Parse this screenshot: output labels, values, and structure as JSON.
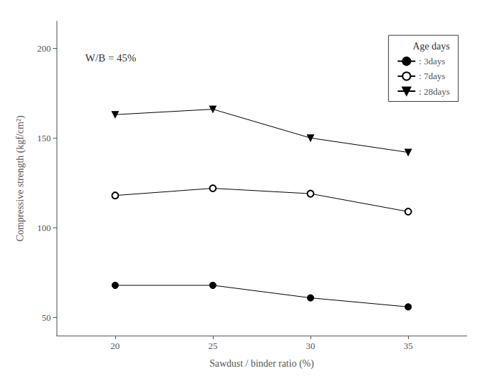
{
  "chart_data": {
    "type": "line",
    "xlabel": "Sawdust / binder ratio (%)",
    "ylabel": "Compressive strength (kgf/cm²)",
    "x": [
      20,
      25,
      30,
      35
    ],
    "series": [
      {
        "name": ": 3days",
        "color": "black",
        "marker": "filled_circle",
        "line_style": "solid",
        "values": [
          68,
          68,
          61,
          56
        ]
      },
      {
        "name": ": 7days",
        "color": "black",
        "marker": "open_circle",
        "line_style": "solid",
        "values": [
          118,
          122,
          119,
          109
        ]
      },
      {
        "name": ": 28days",
        "color": "black",
        "marker": "triangle_down",
        "line_style": "solid",
        "values": [
          163,
          166,
          150,
          142
        ]
      }
    ],
    "xlim": [
      17,
      38
    ],
    "ylim": [
      40,
      215
    ],
    "xticks": [
      20,
      25,
      30,
      35
    ],
    "yticks": [
      50,
      100,
      150,
      200
    ],
    "legend": "upper right",
    "legend_title": "Age days",
    "annotation": "W/B = 45%",
    "grid": false
  }
}
